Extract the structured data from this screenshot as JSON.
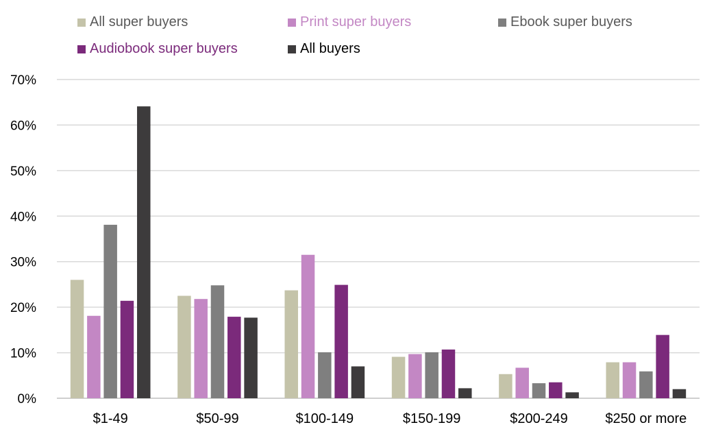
{
  "chart_data": {
    "type": "bar",
    "categories": [
      "$1-49",
      "$50-99",
      "$100-149",
      "$150-199",
      "$200-249",
      "$250 or more"
    ],
    "series": [
      {
        "name": "All super buyers",
        "color": "#c4c3a9",
        "values": [
          26,
          22.5,
          23.7,
          9.1,
          5.3,
          7.9
        ]
      },
      {
        "name": "Print super buyers",
        "color": "#c387c4",
        "values": [
          18.1,
          21.8,
          31.5,
          9.7,
          6.7,
          7.9
        ]
      },
      {
        "name": "Ebook super buyers",
        "color": "#7f7f7f",
        "values": [
          38.1,
          24.8,
          10.1,
          10.1,
          3.3,
          5.9
        ]
      },
      {
        "name": "Audiobook super buyers",
        "color": "#7b2a7b",
        "values": [
          21.4,
          17.9,
          24.9,
          10.7,
          3.5,
          13.9
        ]
      },
      {
        "name": "All buyers",
        "color": "#3d3b3c",
        "values": [
          64.1,
          17.7,
          7,
          2.2,
          1.3,
          2
        ]
      }
    ],
    "yticks": [
      "0%",
      "10%",
      "20%",
      "30%",
      "40%",
      "50%",
      "60%",
      "70%"
    ],
    "ylim": [
      0,
      70
    ],
    "grid": true,
    "legend_position": "top"
  }
}
